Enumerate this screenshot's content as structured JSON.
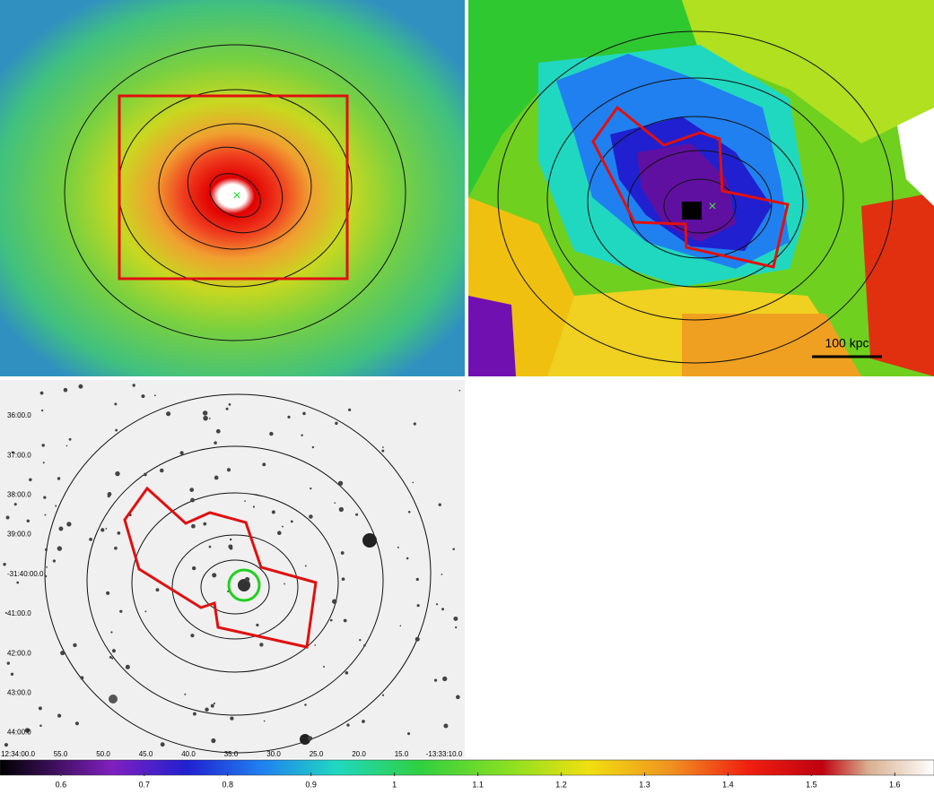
{
  "scale_bar": "100 kpc",
  "optical": {
    "dec_labels": [
      "36:00.0",
      "37:00.0",
      "38:00.0",
      "39:00.0",
      "-31:40:00.0",
      "41:00.0",
      "42:00.0",
      "43:00.0",
      "44:00.0"
    ],
    "ra_labels": [
      "12:34:00.0",
      "55.0",
      "50.0",
      "45.0",
      "40.0",
      "35.0",
      "30.0",
      "25.0",
      "20.0",
      "15.0",
      "-13:33:10.0"
    ]
  },
  "colorbar": {
    "range": [
      0.527,
      1.647
    ],
    "ticks": [
      0.6,
      0.7,
      0.8,
      0.9,
      1,
      1.1,
      1.2,
      1.3,
      1.4,
      1.5,
      1.6
    ]
  }
}
